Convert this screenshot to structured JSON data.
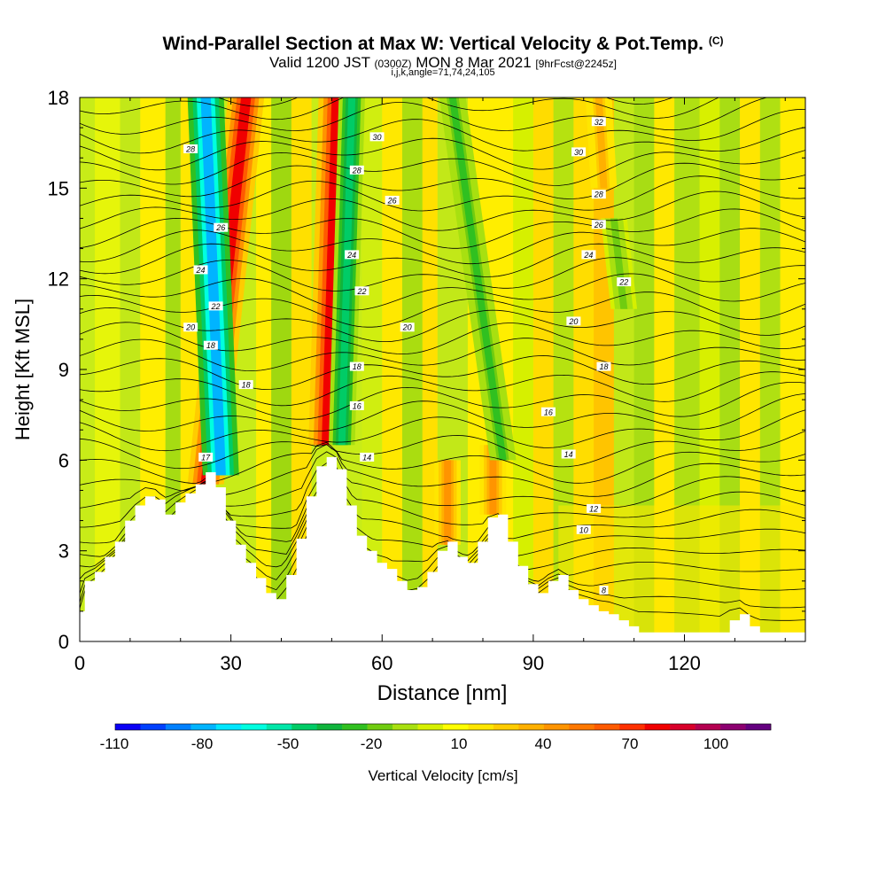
{
  "header": {
    "title": "Wind-Parallel Section at Max W: Vertical Velocity & Pot.Temp.",
    "copyright": "(C)",
    "valid_prefix": "Valid 1200 JST",
    "valid_utc": "(0300Z)",
    "valid_date": "MON 8 Mar 2021",
    "forecast": "[9hrFcst@2245z]",
    "indices": "i,j,k,angle=71,74,24,105"
  },
  "colorbar": {
    "title": "Vertical Velocity [cm/s]",
    "tick_labels": [
      "-110",
      "-80",
      "-50",
      "-20",
      "10",
      "40",
      "70",
      "100"
    ],
    "colors": [
      "#0a00f5",
      "#0040ff",
      "#0080ff",
      "#00b4ff",
      "#00e6ff",
      "#00ffe0",
      "#00e6a8",
      "#00cc66",
      "#10b43c",
      "#30c020",
      "#70cc10",
      "#a8e010",
      "#d6f000",
      "#ffff00",
      "#ffe600",
      "#ffcc00",
      "#ffb000",
      "#ff9400",
      "#ff7800",
      "#ff5a00",
      "#ff3000",
      "#f00000",
      "#d8002a",
      "#b40050",
      "#8c0070",
      "#64007f"
    ]
  },
  "chart_data": {
    "type": "heatmap",
    "xlabel": "Distance [nm]",
    "ylabel": "Height [Kft MSL]",
    "xlim": [
      0,
      144
    ],
    "ylim": [
      0,
      18
    ],
    "x_ticks": [
      0,
      30,
      60,
      90,
      120
    ],
    "y_ticks": [
      0,
      3,
      6,
      9,
      12,
      15,
      18
    ],
    "color_scale": "vertical velocity, -110 to 120 cm/s",
    "terrain_height_kft": [
      [
        0,
        1.0
      ],
      [
        1,
        2.0
      ],
      [
        3,
        2.3
      ],
      [
        5,
        2.8
      ],
      [
        7,
        3.3
      ],
      [
        9,
        4.0
      ],
      [
        11,
        4.5
      ],
      [
        13,
        4.8
      ],
      [
        15,
        4.7
      ],
      [
        17,
        4.2
      ],
      [
        19,
        4.6
      ],
      [
        21,
        4.9
      ],
      [
        23,
        5.2
      ],
      [
        25,
        5.6
      ],
      [
        27,
        5.1
      ],
      [
        29,
        4.0
      ],
      [
        31,
        3.2
      ],
      [
        33,
        2.6
      ],
      [
        35,
        2.1
      ],
      [
        37,
        1.6
      ],
      [
        39,
        1.4
      ],
      [
        41,
        2.2
      ],
      [
        43,
        3.4
      ],
      [
        45,
        4.8
      ],
      [
        47,
        5.8
      ],
      [
        49,
        6.1
      ],
      [
        51,
        5.7
      ],
      [
        53,
        4.5
      ],
      [
        55,
        3.5
      ],
      [
        57,
        3.0
      ],
      [
        59,
        2.6
      ],
      [
        61,
        2.4
      ],
      [
        63,
        2.0
      ],
      [
        65,
        1.7
      ],
      [
        67,
        1.8
      ],
      [
        69,
        2.3
      ],
      [
        71,
        3.0
      ],
      [
        73,
        3.3
      ],
      [
        75,
        2.8
      ],
      [
        77,
        2.6
      ],
      [
        79,
        3.3
      ],
      [
        81,
        4.1
      ],
      [
        83,
        4.2
      ],
      [
        85,
        3.3
      ],
      [
        87,
        2.5
      ],
      [
        89,
        1.9
      ],
      [
        91,
        1.6
      ],
      [
        93,
        2.0
      ],
      [
        95,
        2.2
      ],
      [
        97,
        1.7
      ],
      [
        99,
        1.4
      ],
      [
        101,
        1.2
      ],
      [
        103,
        1.0
      ],
      [
        105,
        0.9
      ],
      [
        107,
        0.7
      ],
      [
        109,
        0.5
      ],
      [
        111,
        0.3
      ],
      [
        113,
        0.3
      ],
      [
        115,
        0.3
      ],
      [
        117,
        0.3
      ],
      [
        119,
        0.3
      ],
      [
        121,
        0.3
      ],
      [
        123,
        0.3
      ],
      [
        125,
        0.3
      ],
      [
        127,
        0.3
      ],
      [
        129,
        0.7
      ],
      [
        131,
        0.9
      ],
      [
        133,
        0.5
      ],
      [
        135,
        0.3
      ],
      [
        137,
        0.3
      ],
      [
        139,
        0.3
      ],
      [
        141,
        0.3
      ],
      [
        144,
        0.3
      ]
    ],
    "updraft_cores": [
      {
        "x_bottom": 25,
        "y_bottom": 5.2,
        "x_top": 33,
        "y_top": 18,
        "peak_cm_s": 85
      },
      {
        "x_bottom": 49,
        "y_bottom": 6.5,
        "x_top": 51,
        "y_top": 18,
        "peak_cm_s": 80
      },
      {
        "x_bottom": 73,
        "y_bottom": 3.2,
        "x_top": 73,
        "y_top": 6,
        "peak_cm_s": 45
      },
      {
        "x_bottom": 82,
        "y_bottom": 4.2,
        "x_top": 82,
        "y_top": 6.5,
        "peak_cm_s": 45
      },
      {
        "x_bottom": 104,
        "y_bottom": 15,
        "x_top": 103,
        "y_top": 18,
        "peak_cm_s": 35
      }
    ],
    "downdraft_cores": [
      {
        "x_bottom": 28,
        "y_bottom": 5.5,
        "x_top": 25,
        "y_top": 18,
        "min_cm_s": -100
      },
      {
        "x_bottom": 52,
        "y_bottom": 6.5,
        "x_top": 54,
        "y_top": 18,
        "min_cm_s": -55
      },
      {
        "x_bottom": 84,
        "y_bottom": 6.0,
        "x_top": 74,
        "y_top": 18,
        "min_cm_s": -35
      },
      {
        "x_bottom": 108,
        "y_bottom": 11,
        "x_top": 106,
        "y_top": 14,
        "min_cm_s": -25
      }
    ],
    "theta_contours": [
      {
        "label": "8",
        "labels": [
          {
            "x": 104,
            "y": 1.7
          }
        ]
      },
      {
        "label": "10",
        "labels": [
          {
            "x": 100,
            "y": 3.7
          }
        ]
      },
      {
        "label": "12",
        "labels": [
          {
            "x": 102,
            "y": 4.4
          }
        ]
      },
      {
        "label": "14",
        "labels": [
          {
            "x": 57,
            "y": 6.1
          },
          {
            "x": 97,
            "y": 6.2
          }
        ]
      },
      {
        "label": "16",
        "labels": [
          {
            "x": 55,
            "y": 7.8
          },
          {
            "x": 93,
            "y": 7.6
          }
        ]
      },
      {
        "label": "17",
        "labels": [
          {
            "x": 25,
            "y": 6.1
          }
        ]
      },
      {
        "label": "18",
        "labels": [
          {
            "x": 26,
            "y": 9.8
          },
          {
            "x": 33,
            "y": 8.5
          },
          {
            "x": 55,
            "y": 9.1
          },
          {
            "x": 104,
            "y": 9.1
          }
        ]
      },
      {
        "label": "20",
        "labels": [
          {
            "x": 22,
            "y": 10.4
          },
          {
            "x": 65,
            "y": 10.4
          },
          {
            "x": 98,
            "y": 10.6
          }
        ]
      },
      {
        "label": "22",
        "labels": [
          {
            "x": 27,
            "y": 11.1
          },
          {
            "x": 56,
            "y": 11.6
          },
          {
            "x": 108,
            "y": 11.9
          }
        ]
      },
      {
        "label": "24",
        "labels": [
          {
            "x": 24,
            "y": 12.3
          },
          {
            "x": 54,
            "y": 12.8
          },
          {
            "x": 101,
            "y": 12.8
          }
        ]
      },
      {
        "label": "26",
        "labels": [
          {
            "x": 28,
            "y": 13.7
          },
          {
            "x": 62,
            "y": 14.6
          },
          {
            "x": 103,
            "y": 13.8
          }
        ]
      },
      {
        "label": "28",
        "labels": [
          {
            "x": 22,
            "y": 16.3
          },
          {
            "x": 55,
            "y": 15.6
          },
          {
            "x": 103,
            "y": 14.8
          }
        ]
      },
      {
        "label": "30",
        "labels": [
          {
            "x": 59,
            "y": 16.7
          },
          {
            "x": 99,
            "y": 16.2
          }
        ]
      },
      {
        "label": "32",
        "labels": [
          {
            "x": 103,
            "y": 17.2
          }
        ]
      }
    ]
  }
}
